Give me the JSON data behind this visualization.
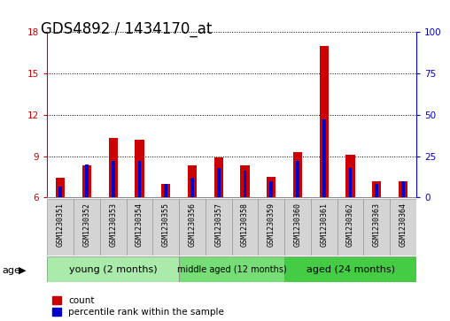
{
  "title": "GDS4892 / 1434170_at",
  "samples": [
    "GSM1230351",
    "GSM1230352",
    "GSM1230353",
    "GSM1230354",
    "GSM1230355",
    "GSM1230356",
    "GSM1230357",
    "GSM1230358",
    "GSM1230359",
    "GSM1230360",
    "GSM1230361",
    "GSM1230362",
    "GSM1230363",
    "GSM1230364"
  ],
  "count_values": [
    7.4,
    8.3,
    10.3,
    10.2,
    7.0,
    8.3,
    8.9,
    8.3,
    7.5,
    9.3,
    17.0,
    9.1,
    7.2,
    7.2
  ],
  "percentile_values": [
    6.5,
    20.0,
    22.0,
    22.0,
    8.0,
    12.0,
    18.0,
    16.0,
    10.0,
    22.0,
    47.0,
    18.0,
    8.0,
    10.0
  ],
  "ylim_left": [
    6,
    18
  ],
  "ylim_right": [
    0,
    100
  ],
  "yticks_left": [
    6,
    9,
    12,
    15,
    18
  ],
  "yticks_right": [
    0,
    25,
    50,
    75,
    100
  ],
  "groups": [
    {
      "label": "young (2 months)",
      "start": 0,
      "end": 5,
      "color": "#aaeaaa"
    },
    {
      "label": "middle aged (12 months)",
      "start": 5,
      "end": 9,
      "color": "#77dd77"
    },
    {
      "label": "aged (24 months)",
      "start": 9,
      "end": 14,
      "color": "#44cc44"
    }
  ],
  "red_bar_width": 0.35,
  "blue_bar_width": 0.12,
  "bar_color_count": "#cc0000",
  "bar_color_percentile": "#0000cc",
  "background_color": "#ffffff",
  "plot_bg_color": "#ffffff",
  "grid_color": "#000000",
  "axis_color_left": "#cc0000",
  "axis_color_right": "#0000cc",
  "legend_count_label": "count",
  "legend_percentile_label": "percentile rank within the sample",
  "age_label": "age",
  "title_fontsize": 12,
  "tick_fontsize": 7.5,
  "label_fontsize": 9
}
